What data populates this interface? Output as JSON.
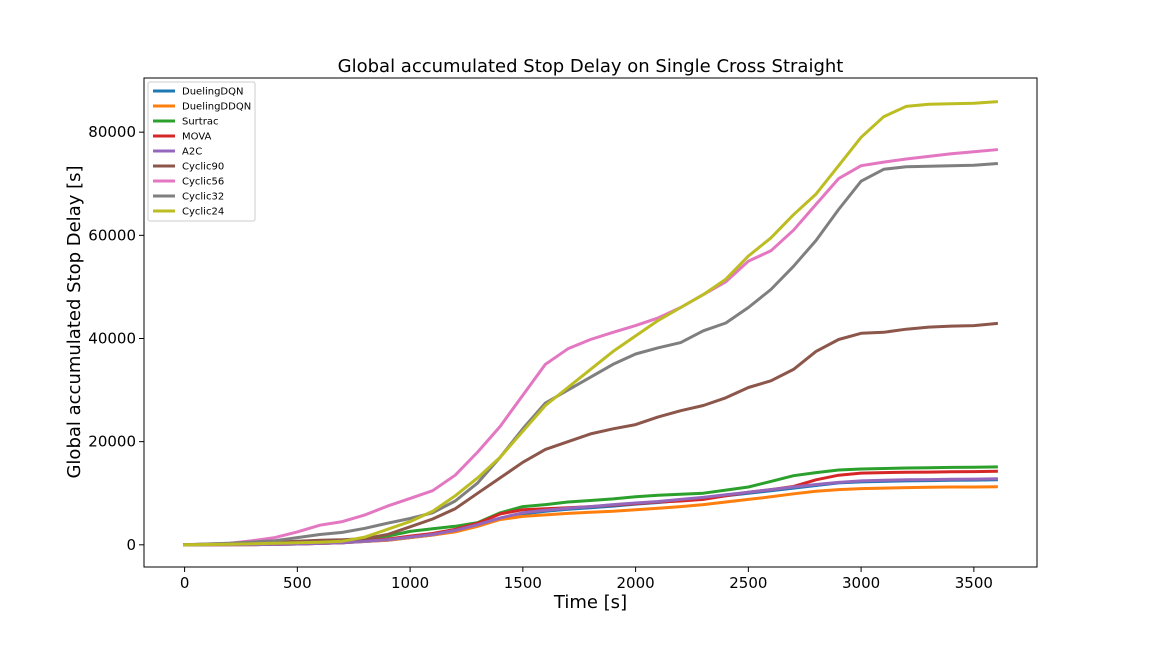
{
  "chart_data": {
    "type": "line",
    "title": "Global accumulated Stop Delay on Single Cross Straight",
    "xlabel": "Time [s]",
    "ylabel": "Global accumulated Stop Delay [s]",
    "xlim": [
      -180,
      3780
    ],
    "ylim": [
      -4300,
      90500
    ],
    "xticks": [
      0,
      500,
      1000,
      1500,
      2000,
      2500,
      3000,
      3500
    ],
    "yticks": [
      0,
      20000,
      40000,
      60000,
      80000
    ],
    "grid": false,
    "legend_position": "top-left",
    "series": [
      {
        "name": "DuelingDQN",
        "color": "#1f77b4",
        "points": [
          [
            0,
            0
          ],
          [
            300,
            50
          ],
          [
            500,
            150
          ],
          [
            700,
            400
          ],
          [
            900,
            900
          ],
          [
            1000,
            1400
          ],
          [
            1100,
            1900
          ],
          [
            1200,
            2600
          ],
          [
            1300,
            3700
          ],
          [
            1400,
            5000
          ],
          [
            1500,
            6000
          ],
          [
            1600,
            6500
          ],
          [
            1700,
            6900
          ],
          [
            1800,
            7200
          ],
          [
            1900,
            7500
          ],
          [
            2000,
            7900
          ],
          [
            2100,
            8200
          ],
          [
            2200,
            8600
          ],
          [
            2300,
            9000
          ],
          [
            2400,
            9500
          ],
          [
            2500,
            10000
          ],
          [
            2600,
            10500
          ],
          [
            2700,
            11000
          ],
          [
            2800,
            11500
          ],
          [
            2900,
            12000
          ],
          [
            3000,
            12200
          ],
          [
            3100,
            12300
          ],
          [
            3200,
            12400
          ],
          [
            3300,
            12450
          ],
          [
            3400,
            12500
          ],
          [
            3500,
            12550
          ],
          [
            3600,
            12600
          ]
        ]
      },
      {
        "name": "DuelingDDQN",
        "color": "#ff7f0e",
        "points": [
          [
            0,
            0
          ],
          [
            300,
            50
          ],
          [
            500,
            150
          ],
          [
            700,
            400
          ],
          [
            900,
            900
          ],
          [
            1000,
            1400
          ],
          [
            1100,
            1900
          ],
          [
            1200,
            2500
          ],
          [
            1300,
            3600
          ],
          [
            1400,
            4900
          ],
          [
            1500,
            5500
          ],
          [
            1600,
            5800
          ],
          [
            1700,
            6100
          ],
          [
            1800,
            6300
          ],
          [
            1900,
            6500
          ],
          [
            2000,
            6800
          ],
          [
            2100,
            7100
          ],
          [
            2200,
            7400
          ],
          [
            2300,
            7800
          ],
          [
            2400,
            8300
          ],
          [
            2500,
            8800
          ],
          [
            2600,
            9300
          ],
          [
            2700,
            9900
          ],
          [
            2800,
            10400
          ],
          [
            2900,
            10700
          ],
          [
            3000,
            10900
          ],
          [
            3100,
            11000
          ],
          [
            3200,
            11100
          ],
          [
            3300,
            11150
          ],
          [
            3400,
            11200
          ],
          [
            3500,
            11200
          ],
          [
            3600,
            11250
          ]
        ]
      },
      {
        "name": "Surtrac",
        "color": "#2ca02c",
        "points": [
          [
            0,
            0
          ],
          [
            300,
            100
          ],
          [
            500,
            300
          ],
          [
            700,
            700
          ],
          [
            900,
            1700
          ],
          [
            1000,
            2600
          ],
          [
            1100,
            3100
          ],
          [
            1200,
            3600
          ],
          [
            1300,
            4300
          ],
          [
            1400,
            6200
          ],
          [
            1500,
            7400
          ],
          [
            1600,
            7800
          ],
          [
            1700,
            8300
          ],
          [
            1800,
            8600
          ],
          [
            1900,
            8900
          ],
          [
            2000,
            9300
          ],
          [
            2100,
            9600
          ],
          [
            2200,
            9800
          ],
          [
            2300,
            10000
          ],
          [
            2400,
            10600
          ],
          [
            2500,
            11200
          ],
          [
            2600,
            12300
          ],
          [
            2700,
            13400
          ],
          [
            2800,
            14000
          ],
          [
            2900,
            14500
          ],
          [
            3000,
            14700
          ],
          [
            3100,
            14800
          ],
          [
            3200,
            14900
          ],
          [
            3300,
            14950
          ],
          [
            3400,
            15000
          ],
          [
            3500,
            15050
          ],
          [
            3600,
            15100
          ]
        ]
      },
      {
        "name": "MOVA",
        "color": "#d62728",
        "points": [
          [
            0,
            0
          ],
          [
            300,
            50
          ],
          [
            500,
            150
          ],
          [
            700,
            400
          ],
          [
            900,
            1100
          ],
          [
            1000,
            1700
          ],
          [
            1100,
            2200
          ],
          [
            1200,
            3000
          ],
          [
            1300,
            4200
          ],
          [
            1400,
            6000
          ],
          [
            1500,
            6800
          ],
          [
            1600,
            7000
          ],
          [
            1700,
            7200
          ],
          [
            1800,
            7400
          ],
          [
            1900,
            7700
          ],
          [
            2000,
            8000
          ],
          [
            2100,
            8300
          ],
          [
            2200,
            8500
          ],
          [
            2300,
            8800
          ],
          [
            2400,
            9500
          ],
          [
            2500,
            10200
          ],
          [
            2600,
            10700
          ],
          [
            2700,
            11300
          ],
          [
            2800,
            12600
          ],
          [
            2900,
            13500
          ],
          [
            3000,
            13900
          ],
          [
            3100,
            14000
          ],
          [
            3200,
            14050
          ],
          [
            3300,
            14100
          ],
          [
            3400,
            14150
          ],
          [
            3500,
            14200
          ],
          [
            3600,
            14250
          ]
        ]
      },
      {
        "name": "A2C",
        "color": "#9467bd",
        "points": [
          [
            0,
            0
          ],
          [
            300,
            50
          ],
          [
            500,
            150
          ],
          [
            700,
            400
          ],
          [
            900,
            1000
          ],
          [
            1000,
            1500
          ],
          [
            1100,
            2000
          ],
          [
            1200,
            2800
          ],
          [
            1300,
            3900
          ],
          [
            1400,
            5200
          ],
          [
            1500,
            6200
          ],
          [
            1600,
            6700
          ],
          [
            1700,
            7100
          ],
          [
            1800,
            7400
          ],
          [
            1900,
            7800
          ],
          [
            2000,
            8100
          ],
          [
            2100,
            8400
          ],
          [
            2200,
            8800
          ],
          [
            2300,
            9200
          ],
          [
            2400,
            9700
          ],
          [
            2500,
            10200
          ],
          [
            2600,
            10700
          ],
          [
            2700,
            11200
          ],
          [
            2800,
            11700
          ],
          [
            2900,
            12100
          ],
          [
            3000,
            12400
          ],
          [
            3100,
            12500
          ],
          [
            3200,
            12600
          ],
          [
            3300,
            12650
          ],
          [
            3400,
            12700
          ],
          [
            3500,
            12750
          ],
          [
            3600,
            12800
          ]
        ]
      },
      {
        "name": "Cyclic90",
        "color": "#8c564b",
        "points": [
          [
            0,
            0
          ],
          [
            200,
            200
          ],
          [
            400,
            500
          ],
          [
            600,
            900
          ],
          [
            700,
            1000
          ],
          [
            800,
            1200
          ],
          [
            900,
            2000
          ],
          [
            1000,
            3500
          ],
          [
            1100,
            5000
          ],
          [
            1200,
            7000
          ],
          [
            1300,
            10000
          ],
          [
            1400,
            13000
          ],
          [
            1500,
            16000
          ],
          [
            1600,
            18500
          ],
          [
            1700,
            20000
          ],
          [
            1800,
            21500
          ],
          [
            1900,
            22500
          ],
          [
            2000,
            23300
          ],
          [
            2100,
            24800
          ],
          [
            2200,
            26000
          ],
          [
            2300,
            27000
          ],
          [
            2400,
            28500
          ],
          [
            2500,
            30500
          ],
          [
            2600,
            31800
          ],
          [
            2700,
            34000
          ],
          [
            2800,
            37500
          ],
          [
            2900,
            39800
          ],
          [
            3000,
            41000
          ],
          [
            3100,
            41200
          ],
          [
            3200,
            41800
          ],
          [
            3300,
            42200
          ],
          [
            3400,
            42400
          ],
          [
            3500,
            42500
          ],
          [
            3600,
            42900
          ]
        ]
      },
      {
        "name": "Cyclic56",
        "color": "#e377c2",
        "points": [
          [
            0,
            0
          ],
          [
            200,
            300
          ],
          [
            300,
            800
          ],
          [
            400,
            1400
          ],
          [
            500,
            2500
          ],
          [
            600,
            3800
          ],
          [
            700,
            4500
          ],
          [
            800,
            5800
          ],
          [
            900,
            7500
          ],
          [
            1000,
            9000
          ],
          [
            1100,
            10500
          ],
          [
            1200,
            13500
          ],
          [
            1300,
            18000
          ],
          [
            1400,
            23000
          ],
          [
            1500,
            29000
          ],
          [
            1600,
            35000
          ],
          [
            1700,
            38000
          ],
          [
            1800,
            39800
          ],
          [
            1900,
            41200
          ],
          [
            2000,
            42500
          ],
          [
            2100,
            44000
          ],
          [
            2200,
            46000
          ],
          [
            2300,
            48500
          ],
          [
            2400,
            51000
          ],
          [
            2500,
            55000
          ],
          [
            2600,
            57000
          ],
          [
            2700,
            61000
          ],
          [
            2800,
            66000
          ],
          [
            2900,
            71000
          ],
          [
            3000,
            73500
          ],
          [
            3100,
            74200
          ],
          [
            3200,
            74800
          ],
          [
            3300,
            75300
          ],
          [
            3400,
            75800
          ],
          [
            3500,
            76200
          ],
          [
            3600,
            76600
          ]
        ]
      },
      {
        "name": "Cyclic32",
        "color": "#7f7f7f",
        "points": [
          [
            0,
            0
          ],
          [
            200,
            300
          ],
          [
            400,
            800
          ],
          [
            500,
            1400
          ],
          [
            600,
            2000
          ],
          [
            700,
            2400
          ],
          [
            800,
            3200
          ],
          [
            900,
            4200
          ],
          [
            1000,
            5100
          ],
          [
            1100,
            6200
          ],
          [
            1200,
            8500
          ],
          [
            1300,
            12000
          ],
          [
            1400,
            17000
          ],
          [
            1500,
            22500
          ],
          [
            1600,
            27500
          ],
          [
            1700,
            30000
          ],
          [
            1800,
            32500
          ],
          [
            1900,
            35000
          ],
          [
            2000,
            37000
          ],
          [
            2100,
            38200
          ],
          [
            2200,
            39200
          ],
          [
            2300,
            41500
          ],
          [
            2400,
            43000
          ],
          [
            2500,
            46000
          ],
          [
            2600,
            49500
          ],
          [
            2700,
            54000
          ],
          [
            2800,
            59000
          ],
          [
            2900,
            65000
          ],
          [
            3000,
            70500
          ],
          [
            3100,
            72800
          ],
          [
            3200,
            73300
          ],
          [
            3300,
            73400
          ],
          [
            3400,
            73500
          ],
          [
            3500,
            73600
          ],
          [
            3600,
            73900
          ]
        ]
      },
      {
        "name": "Cyclic24",
        "color": "#bcbd22",
        "points": [
          [
            0,
            0
          ],
          [
            200,
            100
          ],
          [
            400,
            300
          ],
          [
            600,
            500
          ],
          [
            700,
            700
          ],
          [
            800,
            1500
          ],
          [
            900,
            3000
          ],
          [
            1000,
            4500
          ],
          [
            1100,
            6500
          ],
          [
            1200,
            9500
          ],
          [
            1300,
            13000
          ],
          [
            1400,
            17000
          ],
          [
            1500,
            22000
          ],
          [
            1600,
            27000
          ],
          [
            1700,
            30500
          ],
          [
            1800,
            34000
          ],
          [
            1900,
            37500
          ],
          [
            2000,
            40500
          ],
          [
            2100,
            43500
          ],
          [
            2200,
            46000
          ],
          [
            2300,
            48500
          ],
          [
            2400,
            51500
          ],
          [
            2500,
            56000
          ],
          [
            2600,
            59500
          ],
          [
            2700,
            64000
          ],
          [
            2800,
            68000
          ],
          [
            2900,
            73500
          ],
          [
            3000,
            79000
          ],
          [
            3100,
            83000
          ],
          [
            3200,
            85000
          ],
          [
            3300,
            85400
          ],
          [
            3400,
            85500
          ],
          [
            3500,
            85600
          ],
          [
            3600,
            85900
          ]
        ]
      }
    ]
  }
}
